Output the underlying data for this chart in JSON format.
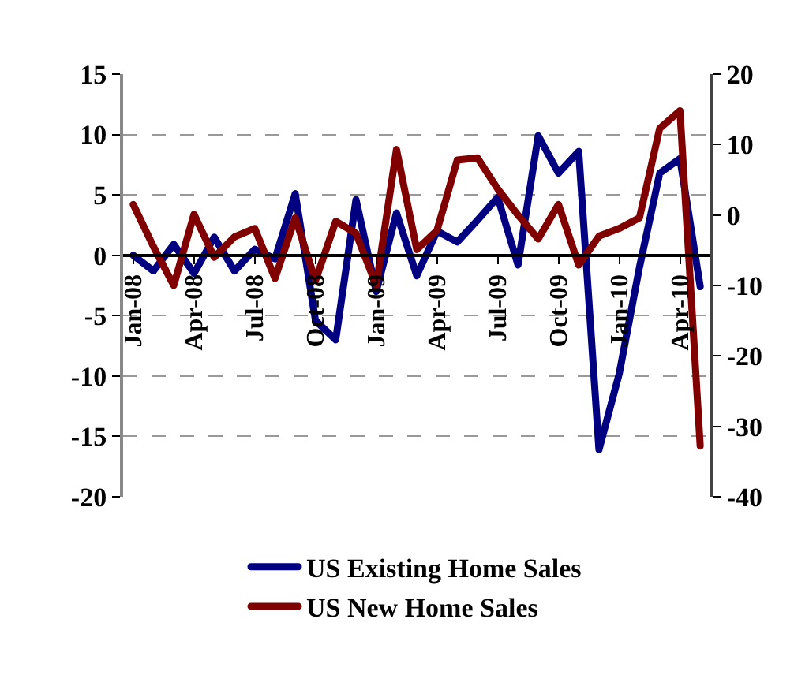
{
  "chart_data": {
    "type": "line",
    "categories": [
      "Jan-08",
      null,
      null,
      "Apr-08",
      null,
      null,
      "Jul-08",
      null,
      null,
      "Oct-08",
      null,
      null,
      "Jan-09",
      null,
      null,
      "Apr-09",
      null,
      null,
      "Jul-09",
      null,
      null,
      "Oct-09",
      null,
      null,
      "Jan-10",
      null,
      null,
      "Apr-10",
      null
    ],
    "series": [
      {
        "name": "US Existing Home Sales",
        "color": "#000080",
        "values": [
          0,
          -1.3,
          0.9,
          -1.5,
          1.5,
          -1.3,
          0.5,
          -0.3,
          5.1,
          -5.4,
          -7.0,
          4.6,
          -3.0,
          3.5,
          -1.7,
          2.0,
          1.1,
          2.9,
          4.8,
          -0.8,
          9.9,
          6.8,
          8.6,
          -16.1,
          -9.8,
          -1.0,
          6.8,
          8.0,
          -2.6
        ]
      },
      {
        "name": "US New Home Sales",
        "color": "#800000",
        "axis": "y2",
        "values": [
          1.5,
          -4.5,
          -10,
          0.1,
          -6,
          -3.1,
          -1.9,
          -9,
          -0.4,
          -9.3,
          -0.9,
          -2.6,
          -10,
          9.3,
          -4.9,
          -2.2,
          7.8,
          8.1,
          3.7,
          0,
          -3.4,
          1.5,
          -7.1,
          -3,
          -1.9,
          -0.4,
          12.3,
          14.8,
          -32.8
        ]
      }
    ],
    "ylim": [
      -20,
      15
    ],
    "yticks": [
      -20,
      -15,
      -10,
      -5,
      0,
      5,
      10,
      15
    ],
    "y2lim": [
      -40,
      20
    ],
    "y2ticks": [
      -40,
      -30,
      -20,
      -10,
      0,
      10,
      20
    ],
    "grid": "y",
    "legend": "bottom",
    "line_style": "solid",
    "marker": "none"
  }
}
